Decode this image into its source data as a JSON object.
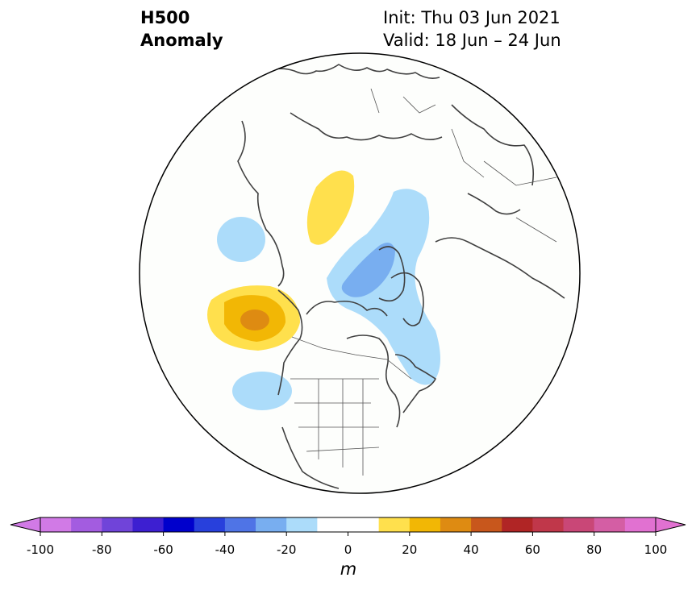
{
  "title": {
    "line1": "H500",
    "line2": "Anomaly",
    "init": "Init: Thu 03 Jun 2021",
    "valid": "Valid: 18 Jun – 24 Jun"
  },
  "colorbar": {
    "unit": "m",
    "ticks": [
      "-100",
      "-80",
      "-60",
      "-40",
      "-20",
      "0",
      "20",
      "40",
      "60",
      "80",
      "100"
    ],
    "bins": [
      {
        "min": -100,
        "max": -90,
        "color": "#d17ae6"
      },
      {
        "min": -90,
        "max": -80,
        "color": "#a35ce0"
      },
      {
        "min": -80,
        "max": -70,
        "color": "#7044d9"
      },
      {
        "min": -70,
        "max": -60,
        "color": "#3d1fd1"
      },
      {
        "min": -60,
        "max": -50,
        "color": "#0000cc"
      },
      {
        "min": -50,
        "max": -40,
        "color": "#2840dc"
      },
      {
        "min": -40,
        "max": -30,
        "color": "#4f74e6"
      },
      {
        "min": -30,
        "max": -20,
        "color": "#78aef0"
      },
      {
        "min": -20,
        "max": -10,
        "color": "#acdcfa"
      },
      {
        "min": -10,
        "max": 0,
        "color": "#ffffff"
      },
      {
        "min": 0,
        "max": 10,
        "color": "#ffffff"
      },
      {
        "min": 10,
        "max": 20,
        "color": "#ffe04d"
      },
      {
        "min": 20,
        "max": 30,
        "color": "#f2b705"
      },
      {
        "min": 30,
        "max": 40,
        "color": "#de8b12"
      },
      {
        "min": 40,
        "max": 50,
        "color": "#c8571c"
      },
      {
        "min": 50,
        "max": 60,
        "color": "#b02525"
      },
      {
        "min": 60,
        "max": 70,
        "color": "#c0374a"
      },
      {
        "min": 70,
        "max": 80,
        "color": "#c94777"
      },
      {
        "min": 80,
        "max": 90,
        "color": "#d45ea4"
      },
      {
        "min": 90,
        "max": 100,
        "color": "#e171d1"
      }
    ],
    "extend_low_color": "#d17ae6",
    "extend_high_color": "#e171d1"
  },
  "map": {
    "projection": "north-polar-stereographic",
    "features": [
      "coastlines",
      "country-borders",
      "us-state-borders"
    ],
    "anomaly_regions": [
      {
        "name": "negative-anomaly-north-pacific",
        "level": "-10 to -20"
      },
      {
        "name": "positive-anomaly-siberia-arctic",
        "level": "10 to 20"
      },
      {
        "name": "positive-anomaly-gulf-of-alaska",
        "level": "30 to 40"
      },
      {
        "name": "negative-anomaly-greenland-arctic",
        "level": "-20 to -30"
      },
      {
        "name": "negative-anomaly-east-pacific",
        "level": "-10 to -20"
      }
    ]
  }
}
